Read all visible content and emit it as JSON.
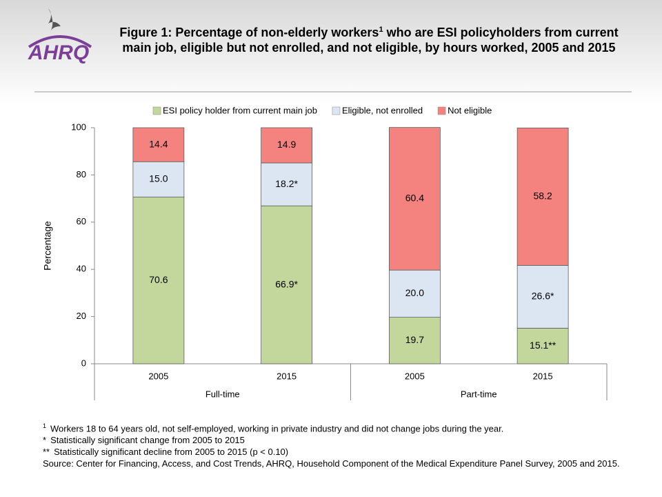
{
  "logo": "AHRQ",
  "chart_data": {
    "type": "stacked-bar",
    "title": [
      "Figure 1: Percentage of non-elderly workers",
      "1",
      " who are ESI policyholders from current main job, eligible but not enrolled, and not eligible, by hours worked, 2005 and 2015"
    ],
    "y_label": "Percentage",
    "categories": [
      "2005",
      "2015",
      "2005",
      "2015"
    ],
    "groups": [
      "Full-time",
      "Part-time"
    ],
    "series": [
      {
        "name": "ESI policy holder from current main job",
        "color": "#c3d69b",
        "values": [
          70.6,
          66.9,
          19.7,
          15.1
        ],
        "value_labels": [
          "70.6",
          "66.9*",
          "19.7",
          "15.1**"
        ]
      },
      {
        "name": "Eligible, not enrolled",
        "color": "#dce6f2",
        "values": [
          15.0,
          18.2,
          20.0,
          26.6
        ],
        "value_labels": [
          "15.0",
          "18.2*",
          "20.0",
          "26.6*"
        ]
      },
      {
        "name": "Not eligible",
        "color": "#f4827e",
        "values": [
          14.4,
          14.9,
          60.4,
          58.2
        ],
        "value_labels": [
          "14.4",
          "14.9",
          "60.4",
          "58.2"
        ]
      }
    ],
    "ylim": [
      0,
      100
    ],
    "yticks": [
      0,
      20,
      40,
      60,
      80,
      100
    ],
    "grid": false,
    "legend": "top",
    "notes": [
      {
        "marker": "1",
        "text": "Workers 18 to 64 years old, not self-employed, working in private industry and did not change jobs during the year."
      },
      {
        "marker": "*",
        "text": "Statistically significant change from 2005 to 2015"
      },
      {
        "marker": "**",
        "text": "Statistically significant decline from 2005 to 2015 (p < 0.10)"
      }
    ],
    "source": "Source: Center for Financing, Access, and Cost Trends, AHRQ, Household Component of the Medical Expenditure Panel Survey, 2005 and 2015."
  }
}
